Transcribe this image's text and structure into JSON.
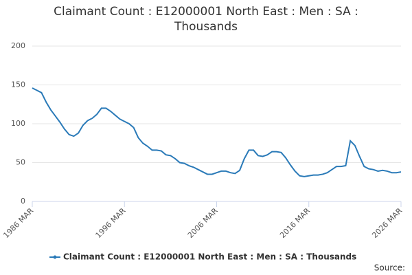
{
  "chart_data": {
    "type": "line",
    "title": "Claimant Count : E12000001 North East : Men : SA : Thousands",
    "source": "Source:",
    "categories": [
      "1986 MAR",
      null,
      null,
      null,
      null,
      null,
      null,
      null,
      null,
      null,
      null,
      null,
      null,
      null,
      null,
      null,
      null,
      null,
      null,
      null,
      "1996 MAR",
      null,
      null,
      null,
      null,
      null,
      null,
      null,
      null,
      null,
      null,
      null,
      null,
      null,
      null,
      null,
      null,
      null,
      null,
      null,
      "2006 MAR",
      null,
      null,
      null,
      null,
      null,
      null,
      null,
      null,
      null,
      null,
      null,
      null,
      null,
      null,
      null,
      null,
      null,
      null,
      null,
      "2016 MAR",
      null,
      null,
      null,
      null,
      null,
      null,
      null,
      null,
      null,
      null,
      null,
      null,
      null,
      null,
      null,
      null,
      null,
      null,
      null,
      "2026 MAR"
    ],
    "series": [
      {
        "name": "Claimant Count : E12000001 North East : Men : SA : Thousands",
        "color": "#2a7ab8",
        "values": [
          146,
          143,
          140,
          128,
          118,
          110,
          102,
          93,
          86,
          84,
          88,
          98,
          104,
          107,
          112,
          120,
          120,
          116,
          111,
          106,
          103,
          100,
          95,
          82,
          75,
          71,
          66,
          66,
          65,
          60,
          59,
          55,
          50,
          49,
          46,
          44,
          41,
          38,
          35,
          35,
          37,
          39,
          39,
          37,
          36,
          40,
          55,
          66,
          66,
          59,
          58,
          60,
          64,
          64,
          63,
          56,
          47,
          39,
          33,
          32,
          33,
          34,
          34,
          35,
          37,
          41,
          45,
          45,
          46,
          78,
          72,
          58,
          45,
          42,
          41,
          39,
          40,
          39,
          37,
          37,
          38
        ]
      }
    ],
    "ylim": [
      0,
      200
    ],
    "yticks": [
      0,
      50,
      100,
      150,
      200
    ],
    "grid": true
  }
}
